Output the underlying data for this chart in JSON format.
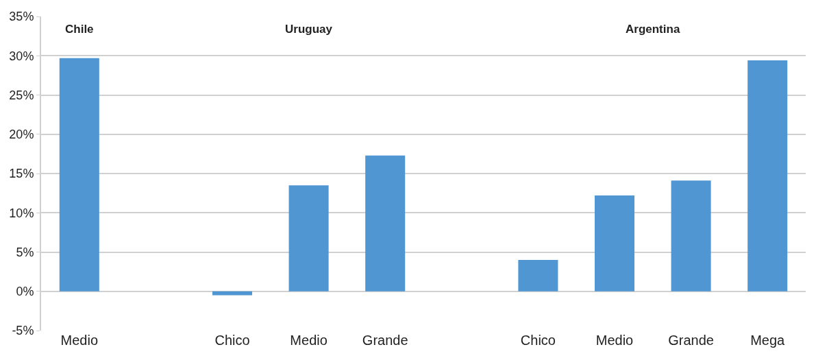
{
  "chart_data": {
    "type": "bar",
    "categories": [
      "Medio",
      null,
      "Chico",
      "Medio",
      "Grande",
      null,
      "Chico",
      "Medio",
      "Grande",
      "Mega"
    ],
    "values": [
      29.7,
      null,
      -0.5,
      13.5,
      17.3,
      null,
      4.0,
      12.2,
      14.1,
      29.4
    ],
    "color": "#4f96d3",
    "ylim": [
      -5,
      35
    ],
    "yticks": [
      {
        "value": -5,
        "label": "-5%"
      },
      {
        "value": 0,
        "label": "0%"
      },
      {
        "value": 5,
        "label": "5%"
      },
      {
        "value": 10,
        "label": "10%"
      },
      {
        "value": 15,
        "label": "15%"
      },
      {
        "value": 20,
        "label": "20%"
      },
      {
        "value": 25,
        "label": "25%"
      },
      {
        "value": 30,
        "label": "30%"
      },
      {
        "value": 35,
        "label": "35%"
      }
    ],
    "grid": "y",
    "annotations": [
      "Chile",
      "Uruguay",
      "Argentina"
    ]
  }
}
